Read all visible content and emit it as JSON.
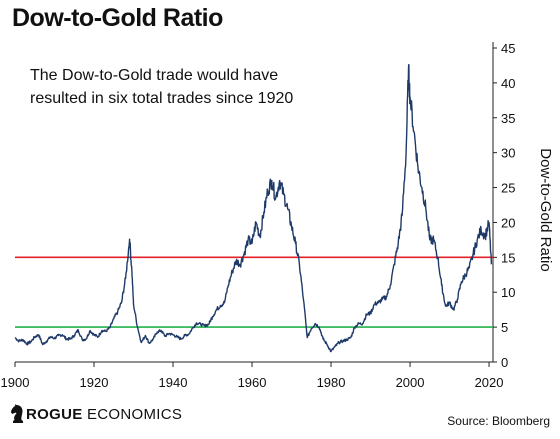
{
  "title": "Dow-to-Gold Ratio",
  "brand": {
    "name_bold": "ROGUE",
    "name_rest": " ECONOMICS"
  },
  "source": "Source: Bloomberg",
  "colors": {
    "line": "#1f3a68",
    "upper": "#e32028",
    "lower": "#22b24c"
  },
  "chart_data": {
    "type": "line",
    "title": "Dow-to-Gold Ratio",
    "ylabel": "Dow-to-Gold Ratio",
    "xlabel": "",
    "xlim": [
      1900,
      2021
    ],
    "ylim": [
      0,
      45
    ],
    "xticks": [
      1900,
      1920,
      1940,
      1960,
      1980,
      2000,
      2020
    ],
    "yticks": [
      0,
      5,
      10,
      15,
      20,
      25,
      30,
      35,
      40,
      45
    ],
    "y_axis_side": "right",
    "annotation": "The Dow-to-Gold trade would have resulted in six total trades since 1920",
    "thresholds": [
      {
        "value": 15,
        "color": "#e32028"
      },
      {
        "value": 5,
        "color": "#22b24c"
      }
    ],
    "series": [
      {
        "color": "#1f3a68",
        "x": [
          1900,
          1901,
          1902,
          1903,
          1904,
          1905,
          1906,
          1907,
          1908,
          1909,
          1910,
          1911,
          1912,
          1913,
          1914,
          1915,
          1916,
          1917,
          1918,
          1919,
          1920,
          1921,
          1922,
          1923,
          1924,
          1925,
          1926,
          1927,
          1928,
          1929,
          1929.6,
          1930,
          1931,
          1932,
          1933,
          1934,
          1935,
          1936,
          1937,
          1938,
          1939,
          1940,
          1941,
          1942,
          1943,
          1944,
          1945,
          1946,
          1947,
          1948,
          1949,
          1950,
          1951,
          1952,
          1953,
          1954,
          1955,
          1956,
          1957,
          1958,
          1959,
          1960,
          1961,
          1962,
          1963,
          1964,
          1965,
          1966,
          1967,
          1968,
          1969,
          1970,
          1971,
          1972,
          1973,
          1974,
          1975,
          1976,
          1977,
          1978,
          1979,
          1980,
          1981,
          1982,
          1983,
          1984,
          1985,
          1986,
          1987,
          1988,
          1989,
          1990,
          1991,
          1992,
          1993,
          1994,
          1995,
          1996,
          1997,
          1998,
          1999,
          1999.6,
          2000,
          2001,
          2002,
          2003,
          2004,
          2005,
          2006,
          2007,
          2008,
          2009,
          2010,
          2011,
          2012,
          2013,
          2014,
          2015,
          2016,
          2017,
          2018,
          2019,
          2020,
          2020.6
        ],
        "y": [
          3.5,
          3.0,
          3.2,
          2.6,
          2.9,
          3.6,
          3.9,
          2.5,
          3.0,
          3.6,
          3.4,
          3.8,
          3.9,
          3.3,
          3.3,
          3.8,
          4.6,
          3.2,
          3.3,
          4.5,
          3.9,
          3.6,
          4.5,
          4.4,
          4.9,
          6.2,
          7.2,
          8.6,
          12.0,
          17.6,
          13.0,
          8.3,
          5.0,
          2.8,
          3.8,
          2.7,
          3.3,
          4.3,
          4.5,
          3.7,
          4.1,
          3.9,
          3.6,
          3.3,
          3.8,
          4.0,
          4.9,
          5.6,
          5.4,
          5.2,
          5.4,
          6.5,
          7.5,
          8.1,
          8.5,
          11.0,
          13.0,
          14.5,
          14.0,
          15.5,
          17.5,
          17.0,
          20.0,
          18.0,
          21.5,
          24.5,
          26.0,
          23.5,
          26.0,
          24.0,
          22.0,
          19.5,
          17.0,
          14.0,
          9.0,
          3.5,
          4.8,
          5.5,
          5.0,
          3.3,
          2.5,
          1.5,
          2.2,
          2.8,
          3.0,
          3.2,
          3.5,
          5.0,
          5.5,
          5.5,
          6.8,
          7.0,
          8.3,
          8.5,
          9.0,
          9.3,
          11.0,
          14.0,
          17.0,
          21.0,
          30.0,
          42.0,
          38.0,
          33.0,
          28.0,
          25.0,
          22.0,
          17.5,
          17.5,
          15.0,
          11.0,
          8.0,
          8.5,
          7.5,
          9.0,
          11.5,
          12.5,
          13.5,
          15.5,
          17.5,
          19.0,
          18.0,
          20.0,
          14.0
        ]
      }
    ]
  }
}
